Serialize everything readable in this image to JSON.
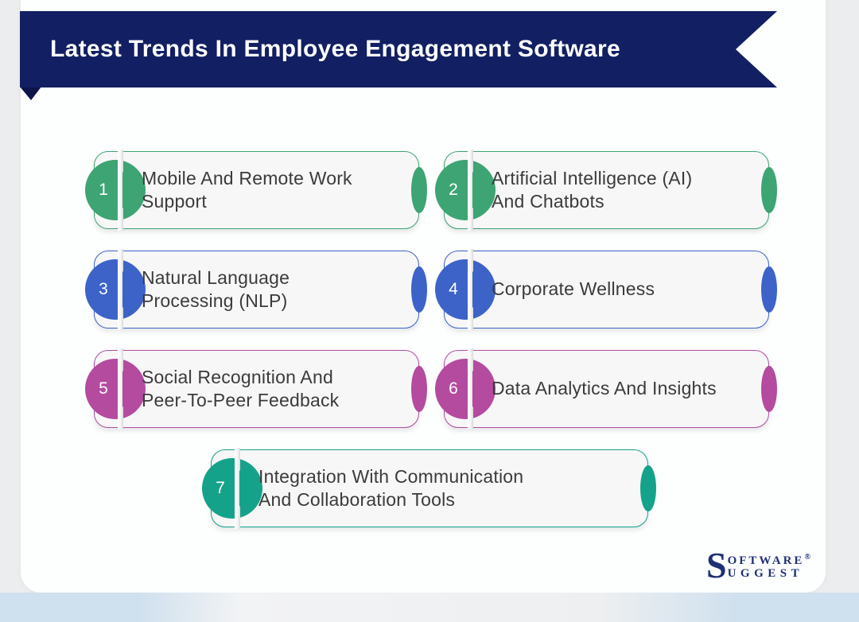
{
  "banner": {
    "title": "Latest Trends In Employee Engagement Software",
    "bg": "#121f62",
    "fold_color": "#0d154a"
  },
  "items": [
    {
      "num": "1",
      "label": "Mobile And Remote Work\nSupport",
      "color": "#3ea473"
    },
    {
      "num": "2",
      "label": "Artificial Intelligence (AI)\nAnd Chatbots",
      "color": "#3ea473"
    },
    {
      "num": "3",
      "label": "Natural Language\nProcessing (NLP)",
      "color": "#3d63c9"
    },
    {
      "num": "4",
      "label": "Corporate Wellness",
      "color": "#3d63c9"
    },
    {
      "num": "5",
      "label": "Social Recognition And\nPeer-To-Peer Feedback",
      "color": "#b44b9f"
    },
    {
      "num": "6",
      "label": "Data Analytics And Insights",
      "color": "#b44b9f"
    },
    {
      "num": "7",
      "label": "Integration With Communication\nAnd Collaboration Tools",
      "color": "#14a38a"
    }
  ],
  "brand": {
    "initial": "S",
    "line1": "oftware",
    "reg": "®",
    "line2": "uggest",
    "color": "#1e3176"
  }
}
